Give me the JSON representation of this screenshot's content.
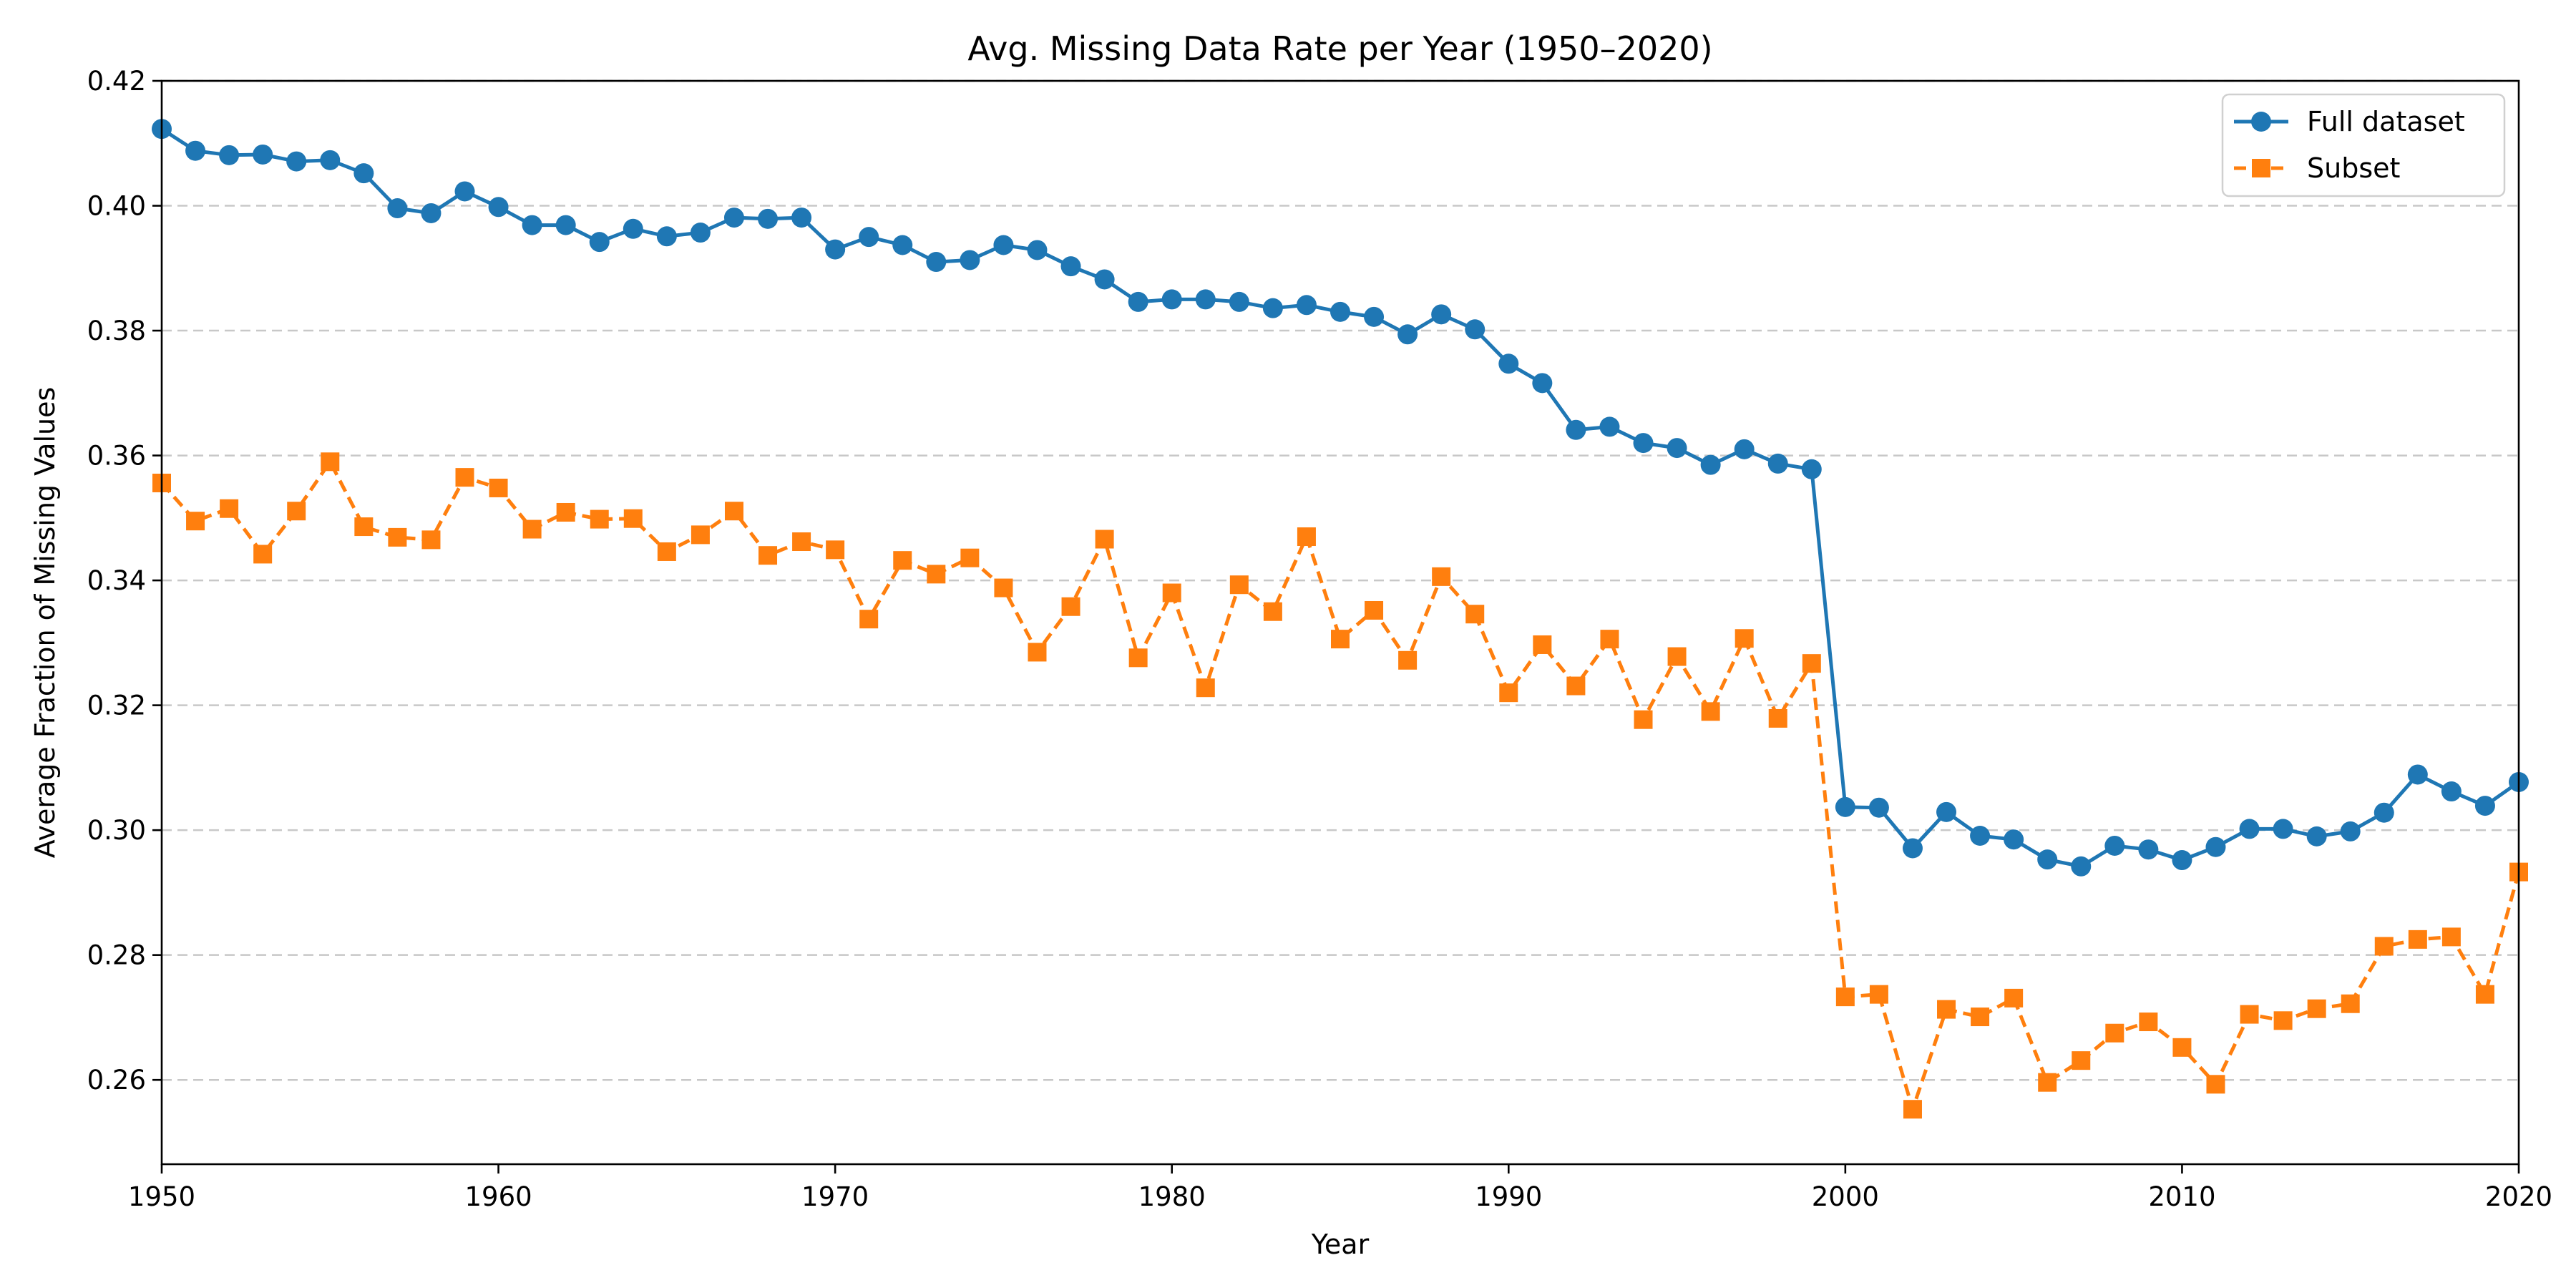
{
  "chart_data": {
    "type": "line",
    "title": "Avg. Missing Data Rate per Year (1950–2020)",
    "xlabel": "Year",
    "ylabel": "Average Fraction of Missing Values",
    "xlim": [
      1950,
      2020
    ],
    "ylim": [
      0.2465,
      0.42
    ],
    "xticks": [
      1950,
      1960,
      1970,
      1980,
      1990,
      2000,
      2010,
      2020
    ],
    "yticks": [
      0.26,
      0.28,
      0.3,
      0.32,
      0.34,
      0.36,
      0.38,
      0.4,
      0.42
    ],
    "grid": "y-dashed",
    "legend_position": "top-right",
    "x": [
      1950,
      1951,
      1952,
      1953,
      1954,
      1955,
      1956,
      1957,
      1958,
      1959,
      1960,
      1961,
      1962,
      1963,
      1964,
      1965,
      1966,
      1967,
      1968,
      1969,
      1970,
      1971,
      1972,
      1973,
      1974,
      1975,
      1976,
      1977,
      1978,
      1979,
      1980,
      1981,
      1982,
      1983,
      1984,
      1985,
      1986,
      1987,
      1988,
      1989,
      1990,
      1991,
      1992,
      1993,
      1994,
      1995,
      1996,
      1997,
      1998,
      1999,
      2000,
      2001,
      2002,
      2003,
      2004,
      2005,
      2006,
      2007,
      2008,
      2009,
      2010,
      2011,
      2012,
      2013,
      2014,
      2015,
      2016,
      2017,
      2018,
      2019,
      2020
    ],
    "series": [
      {
        "name": "Full dataset",
        "color": "#1f77b4",
        "marker": "circle",
        "linestyle": "solid",
        "values": [
          0.4123,
          0.4088,
          0.4081,
          0.4082,
          0.4071,
          0.4073,
          0.4052,
          0.3996,
          0.3988,
          0.4023,
          0.3998,
          0.3969,
          0.3969,
          0.3942,
          0.3963,
          0.3951,
          0.3957,
          0.3981,
          0.3979,
          0.3981,
          0.393,
          0.395,
          0.3937,
          0.391,
          0.3913,
          0.3937,
          0.3929,
          0.3903,
          0.3882,
          0.3846,
          0.385,
          0.385,
          0.3846,
          0.3836,
          0.3841,
          0.383,
          0.3822,
          0.3794,
          0.3826,
          0.3802,
          0.3747,
          0.3716,
          0.3641,
          0.3646,
          0.362,
          0.3612,
          0.3585,
          0.361,
          0.3587,
          0.3578,
          0.3037,
          0.3036,
          0.2971,
          0.3029,
          0.2991,
          0.2985,
          0.2953,
          0.2942,
          0.2975,
          0.2969,
          0.2952,
          0.2973,
          0.3002,
          0.3002,
          0.299,
          0.2998,
          0.3028,
          0.3089,
          0.3062,
          0.3039,
          0.3077
        ]
      },
      {
        "name": "Subset",
        "color": "#ff7f0e",
        "marker": "square",
        "linestyle": "dashed",
        "values": [
          0.3556,
          0.3495,
          0.3515,
          0.3442,
          0.3511,
          0.359,
          0.3486,
          0.3469,
          0.3465,
          0.3565,
          0.3548,
          0.3482,
          0.3509,
          0.3498,
          0.3499,
          0.3446,
          0.3473,
          0.3511,
          0.344,
          0.3462,
          0.3449,
          0.3338,
          0.3432,
          0.341,
          0.3436,
          0.3388,
          0.3285,
          0.3358,
          0.3466,
          0.3276,
          0.338,
          0.3228,
          0.3393,
          0.335,
          0.347,
          0.3306,
          0.3352,
          0.3272,
          0.3406,
          0.3346,
          0.322,
          0.3297,
          0.3231,
          0.3306,
          0.3177,
          0.3278,
          0.319,
          0.3307,
          0.3179,
          0.3267,
          0.2733,
          0.2737,
          0.2553,
          0.2713,
          0.2701,
          0.2731,
          0.2596,
          0.2631,
          0.2675,
          0.2693,
          0.2652,
          0.2593,
          0.2705,
          0.2695,
          0.2714,
          0.2722,
          0.2814,
          0.2825,
          0.2829,
          0.2737,
          0.2933
        ]
      }
    ]
  }
}
